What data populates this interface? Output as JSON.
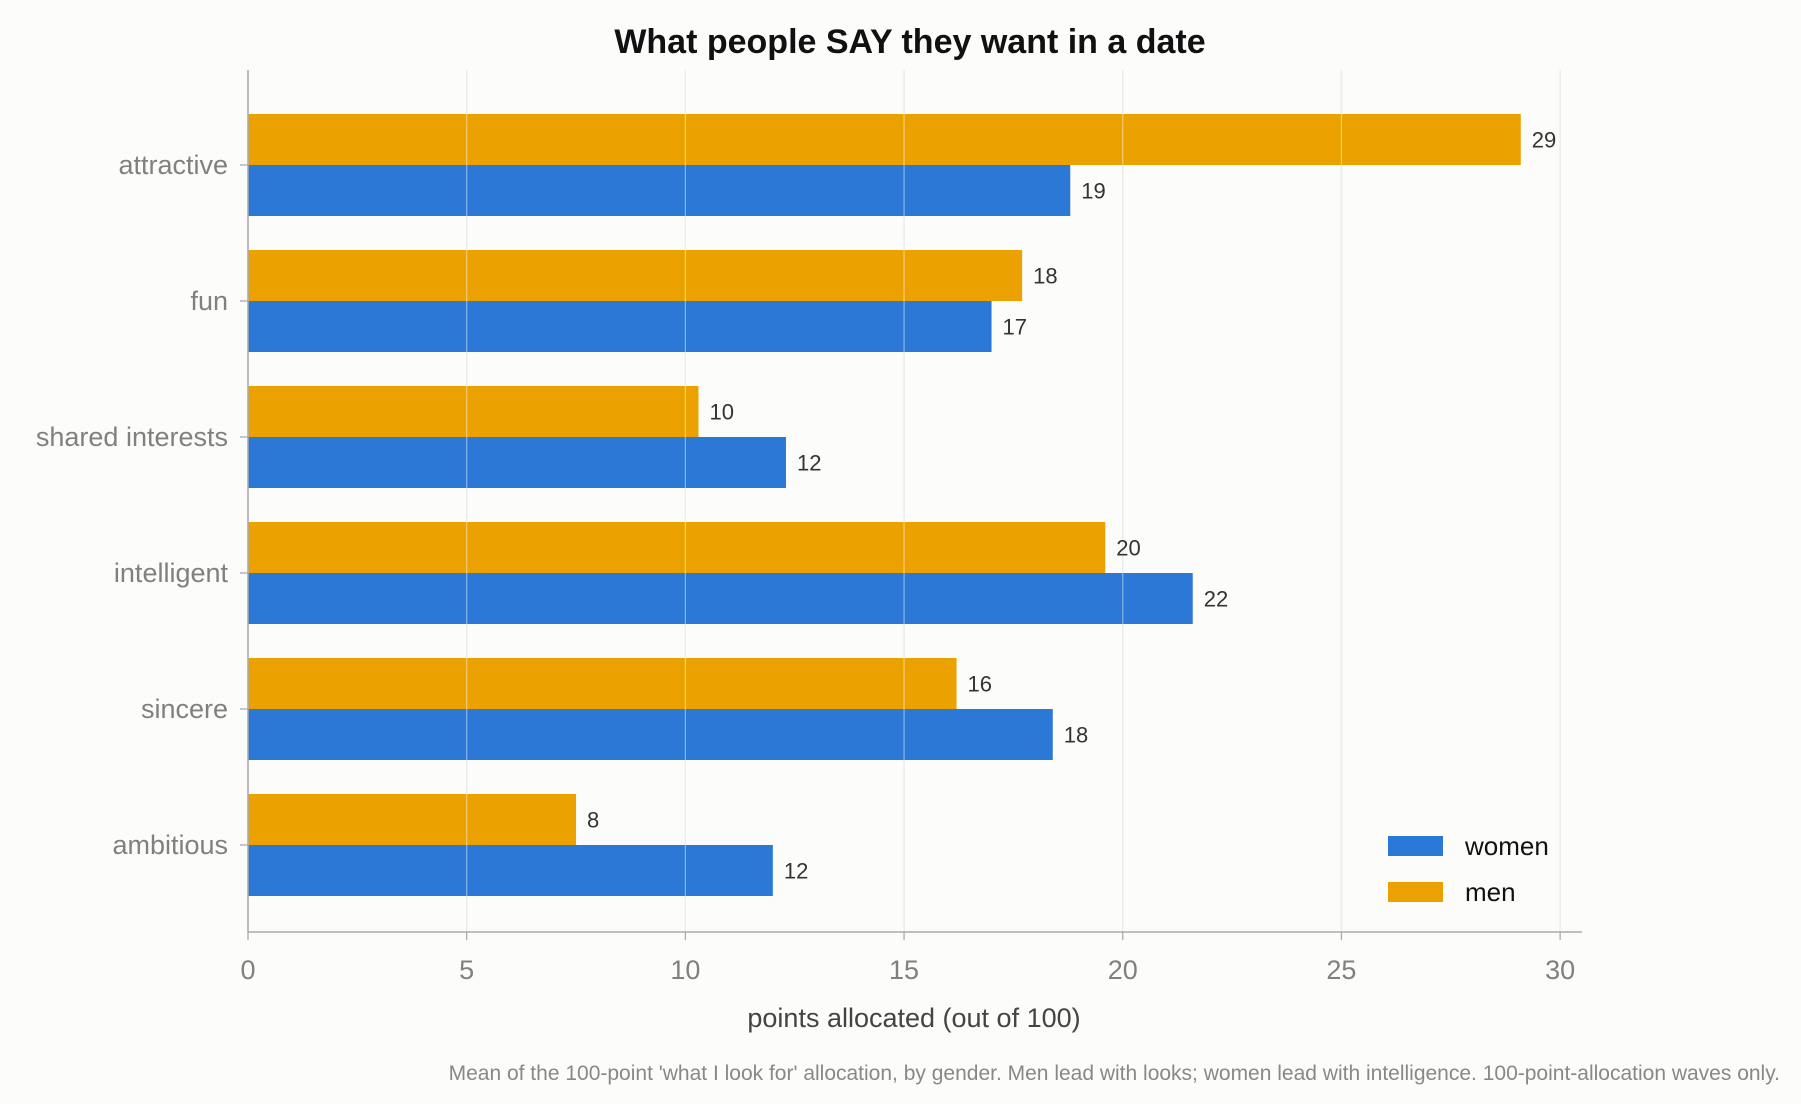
{
  "chart_data": {
    "type": "bar",
    "orientation": "horizontal",
    "title": "What people SAY they want in a date",
    "xlabel": "points allocated (out of 100)",
    "ylabel": "",
    "xlim": [
      0,
      30.5
    ],
    "xticks": [
      0,
      5,
      10,
      15,
      20,
      25,
      30
    ],
    "grid": true,
    "legend_position": "bottom-right",
    "categories": [
      "attractive",
      "fun",
      "shared interests",
      "intelligent",
      "sincere",
      "ambitious"
    ],
    "series": [
      {
        "name": "women",
        "color": "#2b78d6",
        "values": [
          18.8,
          17.0,
          12.3,
          21.6,
          18.4,
          12.0
        ],
        "labels": [
          "19",
          "17",
          "12",
          "22",
          "18",
          "12"
        ]
      },
      {
        "name": "men",
        "color": "#eba200",
        "values": [
          29.1,
          17.7,
          10.3,
          19.6,
          16.2,
          7.5
        ],
        "labels": [
          "29",
          "18",
          "10",
          "20",
          "16",
          "8"
        ]
      }
    ],
    "caption": "Mean of the 100-point 'what I look for' allocation, by gender. Men lead with looks; women lead with intelligence. 100-point-allocation waves only."
  }
}
